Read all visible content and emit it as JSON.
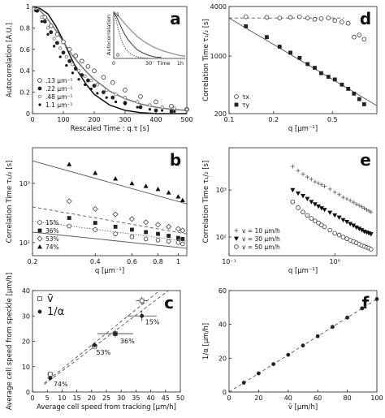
{
  "chart_data": [
    {
      "id": "a",
      "type": "line",
      "panel_label": "a",
      "xlabel": "Rescaled Time : q.τ [s]",
      "ylabel": "Autocorrelation  [A.U.]",
      "xlim": [
        0,
        500
      ],
      "ylim": [
        0,
        1
      ],
      "xticks": [
        0,
        100,
        200,
        300,
        400,
        500
      ],
      "yticks": [
        0,
        0.2,
        0.4,
        0.6,
        0.8,
        1
      ],
      "xtick_labels": [
        "0",
        "100",
        "200",
        "300",
        "400",
        "500"
      ],
      "ytick_labels": [
        "0",
        "0.2",
        "0.4",
        "0.6",
        "0.8",
        "1"
      ],
      "legend_position": "bottom-left",
      "series": [
        {
          "name": ".13 µm⁻¹",
          "marker": "open-circle",
          "x": [
            15,
            40,
            60,
            80,
            100,
            120,
            140,
            160,
            180,
            200,
            230,
            260,
            300,
            350,
            400,
            450,
            500
          ],
          "y": [
            0.97,
            0.9,
            0.82,
            0.74,
            0.67,
            0.6,
            0.54,
            0.49,
            0.44,
            0.4,
            0.34,
            0.29,
            0.22,
            0.16,
            0.11,
            0.07,
            0.04
          ]
        },
        {
          "name": ".22 µm⁻¹",
          "marker": "filled-circle",
          "x": [
            15,
            40,
            60,
            80,
            100,
            120,
            140,
            160,
            180,
            200,
            230,
            260,
            300,
            350,
            400,
            450
          ],
          "y": [
            0.96,
            0.86,
            0.76,
            0.66,
            0.57,
            0.49,
            0.42,
            0.36,
            0.31,
            0.26,
            0.2,
            0.15,
            0.1,
            0.06,
            0.03,
            0.02
          ]
        },
        {
          "name": ".48 µm⁻¹",
          "marker": "small-open-circle",
          "x": [
            10,
            30,
            50,
            70,
            90,
            110,
            130,
            150,
            170,
            190,
            210,
            240,
            270,
            300,
            340,
            380,
            420,
            460,
            500
          ],
          "y": [
            0.97,
            0.9,
            0.8,
            0.7,
            0.61,
            0.53,
            0.46,
            0.4,
            0.35,
            0.31,
            0.27,
            0.22,
            0.18,
            0.15,
            0.11,
            0.08,
            0.06,
            0.05,
            0.04
          ]
        },
        {
          "name": "1.1 µm⁻¹",
          "marker": "small-filled-circle",
          "x": [
            10,
            30,
            50,
            70,
            90,
            110,
            130,
            150,
            170,
            190,
            210,
            240,
            270,
            300,
            340,
            380,
            420,
            460
          ],
          "y": [
            0.96,
            0.86,
            0.74,
            0.63,
            0.53,
            0.45,
            0.38,
            0.32,
            0.27,
            0.23,
            0.19,
            0.15,
            0.11,
            0.09,
            0.06,
            0.04,
            0.03,
            0.02
          ]
        }
      ],
      "fits": [
        {
          "x": [
            0,
            25,
            50,
            75,
            100,
            125,
            150,
            175,
            200,
            250,
            300,
            350,
            400,
            450,
            500
          ],
          "y": [
            1,
            0.98,
            0.93,
            0.82,
            0.68,
            0.52,
            0.38,
            0.27,
            0.18,
            0.08,
            0.03,
            0.01,
            0,
            0,
            0
          ]
        },
        {
          "x": [
            0,
            25,
            50,
            75,
            100,
            125,
            150,
            175,
            200,
            250,
            300,
            350,
            400,
            450,
            500
          ],
          "y": [
            1,
            0.96,
            0.88,
            0.78,
            0.67,
            0.56,
            0.47,
            0.39,
            0.32,
            0.21,
            0.14,
            0.09,
            0.06,
            0.04,
            0.03
          ]
        }
      ],
      "inset": {
        "ylabel": "Autocorrelation",
        "xtick_labels": [
          "0",
          "30'",
          "1h"
        ],
        "xlabel": "Time",
        "ytick_labels": [
          "1",
          "0"
        ],
        "xlim": [
          0,
          60
        ],
        "ylim": [
          0,
          1
        ],
        "curves": [
          {
            "style": "dotted",
            "x": [
              0,
              2,
              4,
              6,
              8,
              10,
              13,
              16,
              20,
              25,
              30
            ],
            "y": [
              1,
              0.82,
              0.6,
              0.42,
              0.3,
              0.2,
              0.12,
              0.07,
              0.03,
              0.01,
              0
            ]
          },
          {
            "style": "solid-dark",
            "x": [
              0,
              3,
              6,
              9,
              12,
              16,
              20,
              25,
              30,
              35,
              40
            ],
            "y": [
              1,
              0.85,
              0.68,
              0.52,
              0.4,
              0.28,
              0.18,
              0.11,
              0.06,
              0.03,
              0.02
            ]
          },
          {
            "style": "solid-gray",
            "x": [
              0,
              4,
              8,
              12,
              16,
              20,
              26,
              32,
              40,
              48,
              56,
              60
            ],
            "y": [
              1,
              0.9,
              0.78,
              0.66,
              0.56,
              0.46,
              0.35,
              0.26,
              0.17,
              0.11,
              0.06,
              0.05
            ]
          }
        ]
      }
    },
    {
      "id": "d",
      "type": "scatter",
      "panel_label": "d",
      "xlabel": "q [µm⁻¹]",
      "ylabel": "Correlation Time   τ₁/₂ [s]",
      "xscale": "log",
      "yscale": "log",
      "xlim": [
        0.1,
        1.0
      ],
      "ylim": [
        200,
        4000
      ],
      "xticks": [
        0.1,
        0.2,
        0.5
      ],
      "yticks": [
        200,
        1000,
        4000
      ],
      "xtick_labels": [
        "0.1",
        "0.2",
        "0.5"
      ],
      "ytick_labels": [
        "200",
        "1000",
        "4000"
      ],
      "legend_position": "bottom-left",
      "series": [
        {
          "name": "τx",
          "marker": "open-circle",
          "x": [
            0.13,
            0.18,
            0.22,
            0.26,
            0.3,
            0.34,
            0.38,
            0.42,
            0.47,
            0.52,
            0.58,
            0.64,
            0.7,
            0.76,
            0.82
          ],
          "y": [
            3000,
            2950,
            2900,
            2950,
            3000,
            2900,
            2800,
            2850,
            2900,
            2700,
            2600,
            2500,
            1700,
            1800,
            1600
          ]
        },
        {
          "name": "τy",
          "marker": "filled-square",
          "x": [
            0.13,
            0.18,
            0.22,
            0.26,
            0.3,
            0.34,
            0.38,
            0.42,
            0.47,
            0.52,
            0.58,
            0.64,
            0.7,
            0.76,
            0.82
          ],
          "y": [
            2300,
            1700,
            1300,
            1100,
            950,
            800,
            720,
            620,
            560,
            520,
            450,
            400,
            350,
            300,
            260
          ]
        }
      ],
      "fits": [
        {
          "style": "dashed",
          "x": [
            0.1,
            0.6
          ],
          "y": [
            2900,
            2900
          ]
        },
        {
          "style": "solid",
          "x": [
            0.1,
            1.0
          ],
          "y": [
            2900,
            250
          ]
        }
      ]
    },
    {
      "id": "b",
      "type": "scatter",
      "panel_label": "b",
      "xlabel": "q [µm⁻¹]",
      "ylabel": "Correlation Time   τ₁/₂ [s]",
      "xscale": "log",
      "yscale": "log",
      "xlim": [
        0.2,
        1.1
      ],
      "ylim": [
        60,
        4000
      ],
      "xticks": [
        0.2,
        0.4,
        0.6,
        0.8,
        1
      ],
      "yticks": [
        100,
        1000
      ],
      "xtick_labels": [
        "0.2",
        "0.4",
        "0.6",
        "0.8",
        "1"
      ],
      "ytick_labels": [
        "10²",
        "10³"
      ],
      "legend_position": "bottom-left",
      "series": [
        {
          "name": "15%",
          "marker": "open-circle",
          "x": [
            0.3,
            0.4,
            0.5,
            0.6,
            0.7,
            0.8,
            0.9,
            1.0,
            1.05
          ],
          "y": [
            190,
            165,
            140,
            125,
            115,
            110,
            105,
            100,
            95
          ]
        },
        {
          "name": "36%",
          "marker": "filled-square",
          "x": [
            0.3,
            0.4,
            0.5,
            0.6,
            0.7,
            0.8,
            0.9,
            1.0,
            1.05
          ],
          "y": [
            260,
            215,
            185,
            165,
            150,
            140,
            130,
            120,
            115
          ]
        },
        {
          "name": "53%",
          "marker": "open-diamond",
          "x": [
            0.3,
            0.4,
            0.5,
            0.6,
            0.7,
            0.8,
            0.9,
            1.0,
            1.05
          ],
          "y": [
            500,
            370,
            300,
            250,
            220,
            200,
            185,
            170,
            160
          ]
        },
        {
          "name": "74%",
          "marker": "filled-triangle",
          "x": [
            0.3,
            0.4,
            0.5,
            0.6,
            0.7,
            0.8,
            0.9,
            1.0,
            1.05
          ],
          "y": [
            2100,
            1500,
            1200,
            1000,
            900,
            800,
            700,
            600,
            520
          ]
        }
      ],
      "fits": [
        {
          "style": "solid",
          "x": [
            0.2,
            1.1
          ],
          "y": [
            150,
            80
          ]
        },
        {
          "style": "dotted",
          "x": [
            0.2,
            1.1
          ],
          "y": [
            230,
            105
          ]
        },
        {
          "style": "dashed",
          "x": [
            0.2,
            1.1
          ],
          "y": [
            400,
            140
          ]
        },
        {
          "style": "solid",
          "x": [
            0.2,
            1.1
          ],
          "y": [
            2400,
            450
          ]
        }
      ]
    },
    {
      "id": "e",
      "type": "scatter",
      "panel_label": "e",
      "xlabel": "q [µm⁻¹]",
      "ylabel": "Correlation Time   τ₁/₂ [s]",
      "xscale": "log",
      "yscale": "log",
      "xlim": [
        0.1,
        2.5
      ],
      "ylim": [
        40,
        8000
      ],
      "xticks": [
        0.1,
        1
      ],
      "yticks": [
        100,
        1000
      ],
      "xtick_labels": [
        "10⁻¹",
        "10⁰"
      ],
      "ytick_labels": [
        "10²",
        "10³"
      ],
      "legend_position": "bottom-left",
      "series": [
        {
          "name": "v = 10 µm/h",
          "marker": "plus",
          "x": [
            0.4,
            0.45,
            0.5,
            0.55,
            0.6,
            0.65,
            0.7,
            0.75,
            0.8,
            0.9,
            1.0,
            1.1,
            1.2,
            1.3,
            1.4,
            1.5,
            1.6,
            1.7,
            1.8,
            1.9,
            2.0,
            2.1,
            2.2
          ],
          "y": [
            3200,
            2600,
            2200,
            1900,
            1700,
            1500,
            1400,
            1300,
            1200,
            1050,
            900,
            800,
            700,
            650,
            600,
            550,
            500,
            470,
            440,
            410,
            380,
            360,
            340
          ]
        },
        {
          "name": "v = 30 µm/h",
          "marker": "filled-triangle-down",
          "x": [
            0.4,
            0.45,
            0.5,
            0.55,
            0.6,
            0.65,
            0.7,
            0.75,
            0.8,
            0.9,
            1.0,
            1.1,
            1.2,
            1.3,
            1.4,
            1.5,
            1.6,
            1.7,
            1.8,
            1.9,
            2.0,
            2.1,
            2.2
          ],
          "y": [
            1000,
            850,
            750,
            650,
            560,
            500,
            450,
            410,
            380,
            330,
            290,
            260,
            230,
            210,
            190,
            175,
            160,
            150,
            140,
            130,
            125,
            120,
            115
          ]
        },
        {
          "name": "v = 50 µm/h",
          "marker": "open-circle",
          "x": [
            0.4,
            0.45,
            0.5,
            0.55,
            0.6,
            0.65,
            0.7,
            0.75,
            0.8,
            0.9,
            1.0,
            1.1,
            1.2,
            1.3,
            1.4,
            1.5,
            1.6,
            1.7,
            1.8,
            1.9,
            2.0,
            2.1,
            2.2
          ],
          "y": [
            560,
            420,
            340,
            290,
            250,
            220,
            200,
            180,
            165,
            140,
            120,
            110,
            100,
            92,
            85,
            80,
            75,
            70,
            66,
            63,
            60,
            58,
            55
          ]
        }
      ]
    },
    {
      "id": "c",
      "type": "scatter",
      "panel_label": "c",
      "xlabel": "Average cell speed from tracking [µm/h]",
      "ylabel": "Average cell speed from speckle [µm/h]",
      "xlim": [
        0,
        50
      ],
      "ylim": [
        0,
        40
      ],
      "xticks": [
        0,
        5,
        10,
        15,
        20,
        25,
        30,
        35,
        40,
        45,
        50
      ],
      "yticks": [
        0,
        10,
        20,
        30,
        40
      ],
      "xtick_labels": [
        "0",
        "5",
        "10",
        "15",
        "20",
        "25",
        "30",
        "35",
        "40",
        "45",
        "50"
      ],
      "ytick_labels": [
        "0",
        "10",
        "20",
        "30",
        "40"
      ],
      "legend_position": "top-left",
      "legend": [
        "v̄",
        "1/α"
      ],
      "series": [
        {
          "name": "v̄",
          "marker": "open-square",
          "x": [
            6,
            21,
            28,
            37
          ],
          "y": [
            7,
            18,
            23,
            36
          ],
          "xerr": [
            1,
            1,
            6,
            2
          ],
          "yerr": [
            0.5,
            0.5,
            1.5,
            1.5
          ]
        },
        {
          "name": "1/α",
          "marker": "filled-circle",
          "x": [
            6,
            21,
            28,
            37
          ],
          "y": [
            5.5,
            18.5,
            23,
            30
          ],
          "xerr": [
            1,
            1,
            6,
            5
          ],
          "yerr": [
            0.5,
            0.5,
            1,
            2
          ]
        }
      ],
      "point_labels": [
        "74%",
        "53%",
        "36%",
        "15%"
      ],
      "fits": [
        {
          "style": "dashed",
          "x": [
            4,
            46
          ],
          "y": [
            3,
            40
          ]
        },
        {
          "style": "dashed",
          "x": [
            4,
            43
          ],
          "y": [
            3.5,
            40
          ]
        }
      ]
    },
    {
      "id": "f",
      "type": "scatter",
      "panel_label": "f",
      "xlabel": "v̄ [µm/h]",
      "ylabel": "1/α [µm/h]",
      "xlim": [
        0,
        100
      ],
      "ylim": [
        0,
        60
      ],
      "xticks": [
        0,
        20,
        40,
        60,
        80,
        100
      ],
      "yticks": [
        0,
        20,
        40,
        60
      ],
      "xtick_labels": [
        "0",
        "20",
        "40",
        "60",
        "80",
        "100"
      ],
      "ytick_labels": [
        "0",
        "20",
        "40",
        "60"
      ],
      "series": [
        {
          "name": "",
          "marker": "filled-circle",
          "x": [
            10,
            20,
            30,
            40,
            50,
            60,
            70,
            80,
            90,
            100
          ],
          "y": [
            5.5,
            11,
            16.5,
            22,
            27.5,
            33,
            38.5,
            44,
            49.5,
            55
          ]
        }
      ],
      "fits": [
        {
          "style": "dashed",
          "x": [
            0,
            100
          ],
          "y": [
            0,
            55
          ]
        }
      ]
    }
  ]
}
